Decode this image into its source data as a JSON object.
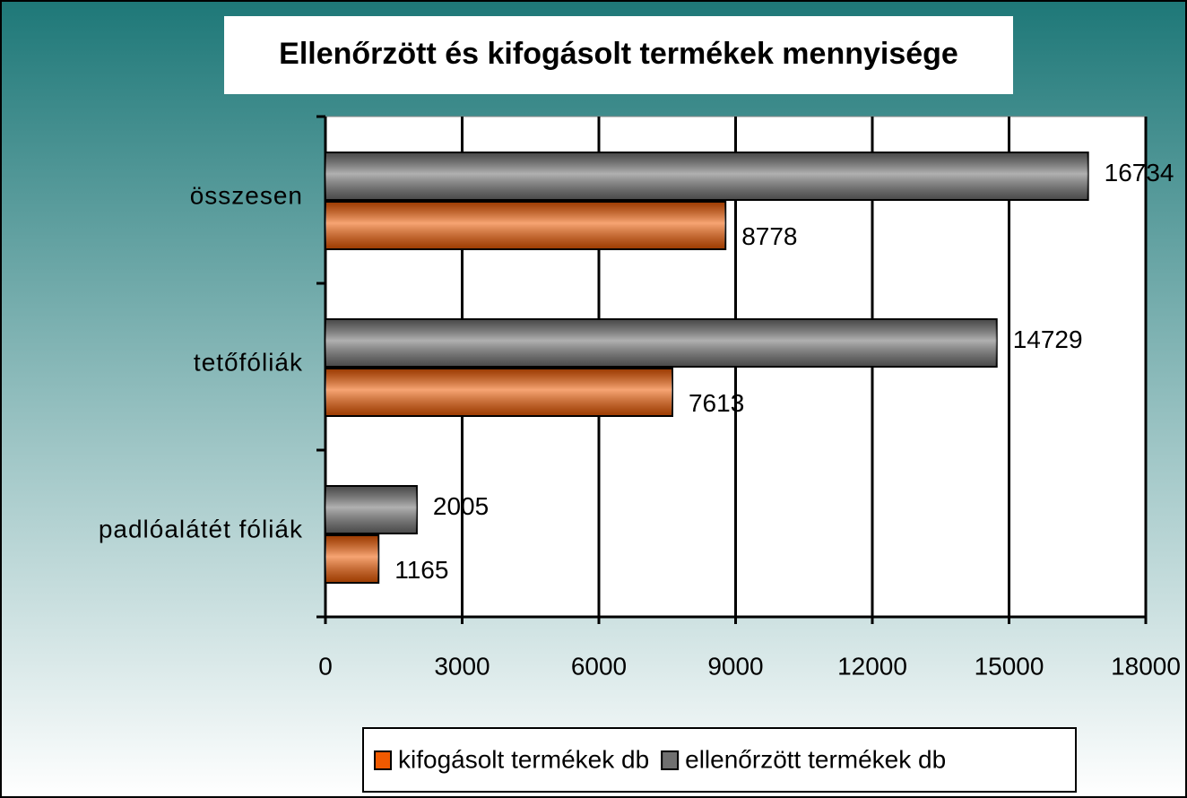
{
  "chart_data": {
    "type": "hbar",
    "title": "Ellenőrzött és kifogásolt termékek mennyisége",
    "categories": [
      "összesen",
      "tetőfóliák",
      "padlóalátét fóliák"
    ],
    "series": [
      {
        "name": "kifogásolt termékek db",
        "color": "#f05a00",
        "values": [
          8778,
          7613,
          1165
        ]
      },
      {
        "name": "ellenőrzött termékek db",
        "color": "#707070",
        "values": [
          16734,
          14729,
          2005
        ]
      }
    ],
    "xlim": [
      0,
      18000
    ],
    "xticks": [
      0,
      3000,
      6000,
      9000,
      12000,
      15000,
      18000
    ],
    "grid": true,
    "legend": "bottom"
  }
}
